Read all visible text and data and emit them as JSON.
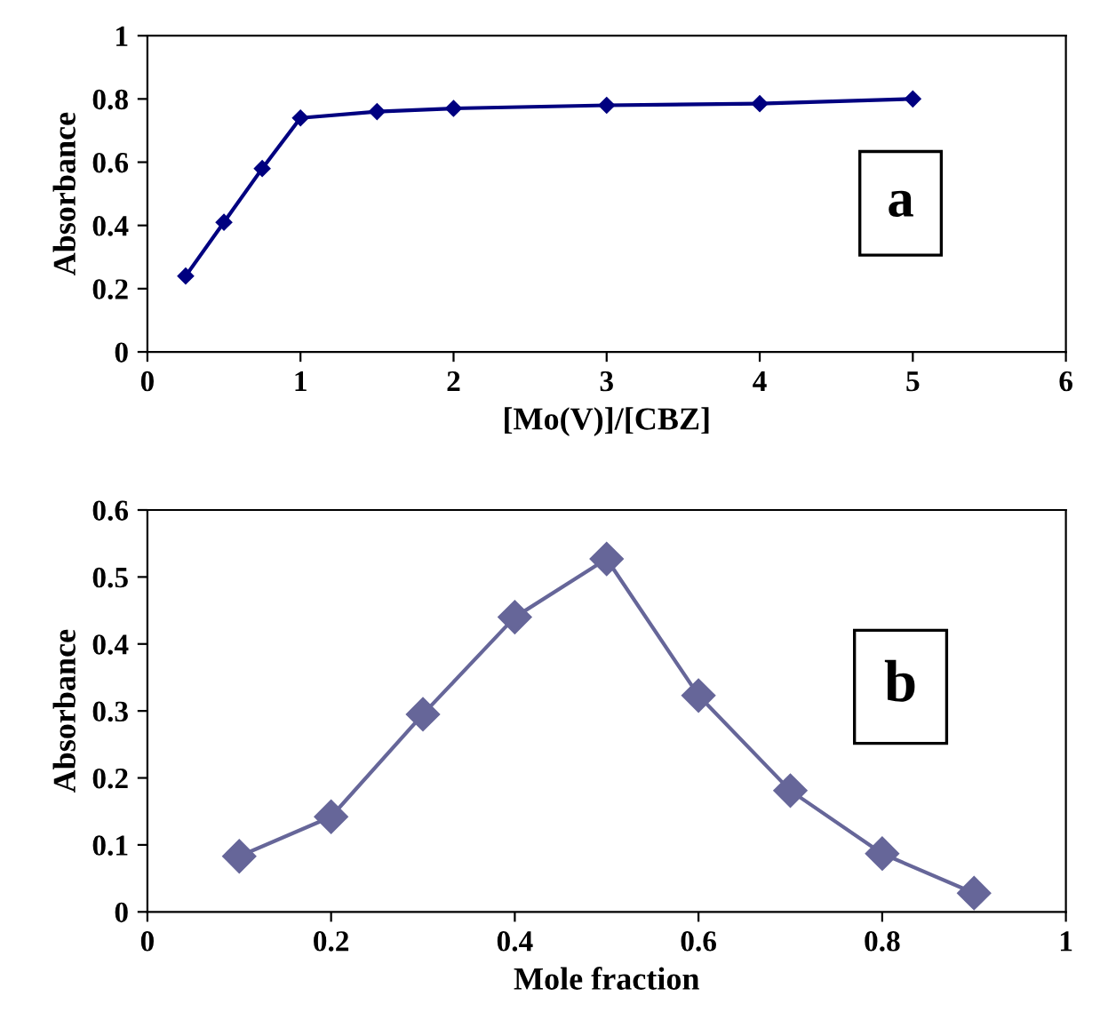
{
  "chart_data": [
    {
      "type": "line",
      "xlabel": "[Mo(V)]/[CBZ]",
      "ylabel": "Absorbance",
      "annotations": [
        "a"
      ],
      "x": [
        0.25,
        0.5,
        0.75,
        1,
        1.5,
        2,
        3,
        4,
        5
      ],
      "series": [
        {
          "color": "#000080",
          "values": [
            0.24,
            0.41,
            0.58,
            0.74,
            0.76,
            0.77,
            0.78,
            0.785,
            0.8
          ]
        }
      ],
      "xlim": [
        0,
        6
      ],
      "xticks": [
        0,
        1,
        2,
        3,
        4,
        5,
        6
      ],
      "ylim": [
        0,
        1
      ],
      "yticks": [
        0,
        0.2,
        0.4,
        0.6,
        0.8,
        1
      ],
      "grid": false,
      "marker": "diamond",
      "line_style": "solid"
    },
    {
      "type": "line",
      "xlabel": "Mole fraction",
      "ylabel": "Absorbance",
      "annotations": [
        "b"
      ],
      "x": [
        0.1,
        0.2,
        0.3,
        0.4,
        0.5,
        0.6,
        0.7,
        0.8,
        0.9
      ],
      "series": [
        {
          "color": "#666699",
          "values": [
            0.083,
            0.142,
            0.295,
            0.44,
            0.527,
            0.323,
            0.181,
            0.087,
            0.028
          ]
        }
      ],
      "xlim": [
        0,
        1
      ],
      "xticks": [
        0,
        0.2,
        0.4,
        0.6,
        0.8,
        1
      ],
      "ylim": [
        0,
        0.6
      ],
      "yticks": [
        0,
        0.1,
        0.2,
        0.3,
        0.4,
        0.5,
        0.6
      ],
      "grid": false,
      "marker": "diamond",
      "line_style": "solid"
    }
  ]
}
